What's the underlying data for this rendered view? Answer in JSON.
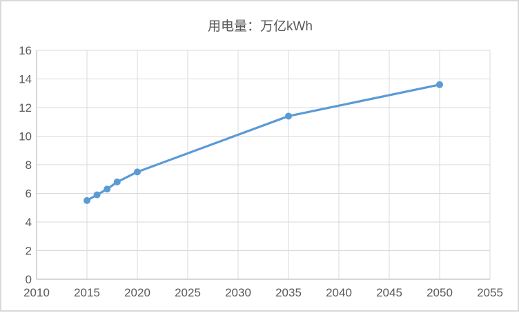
{
  "colors": {
    "series": "#5B9BD5",
    "gridline": "#D9D9D9",
    "axis_line": "#BFBFBF",
    "text": "#595959",
    "frame_border": "#D9D9D9",
    "background": "#FFFFFF"
  },
  "chart_data": {
    "type": "line",
    "title": "用电量：万亿kWh",
    "x": [
      2015,
      2016,
      2017,
      2018,
      2020,
      2035,
      2050
    ],
    "series": [
      {
        "name": "用电量",
        "values": [
          5.5,
          5.9,
          6.3,
          6.8,
          7.5,
          11.4,
          13.6
        ]
      }
    ],
    "xlim": [
      2010,
      2055
    ],
    "ylim": [
      0,
      16
    ],
    "x_ticks": [
      2010,
      2015,
      2020,
      2025,
      2030,
      2035,
      2040,
      2045,
      2050,
      2055
    ],
    "y_ticks": [
      0,
      2,
      4,
      6,
      8,
      10,
      12,
      14,
      16
    ],
    "grid": true,
    "legend_position": "none",
    "marker": "circle"
  }
}
